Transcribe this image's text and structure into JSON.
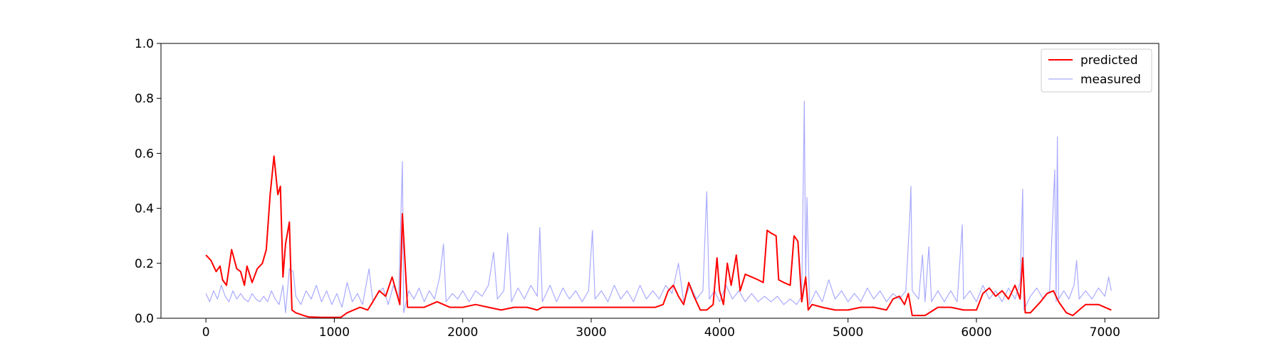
{
  "chart_data": {
    "type": "line",
    "title": "",
    "xlabel": "",
    "ylabel": "",
    "xlim": [
      -350,
      7420
    ],
    "ylim": [
      0,
      1.0
    ],
    "grid": false,
    "legend_position": "top-right",
    "x_ticks": [
      0,
      1000,
      2000,
      3000,
      4000,
      5000,
      6000,
      7000
    ],
    "x_tick_labels": [
      "0",
      "1000",
      "2000",
      "3000",
      "4000",
      "5000",
      "6000",
      "7000"
    ],
    "y_ticks": [
      0.0,
      0.2,
      0.4,
      0.6,
      0.8,
      1.0
    ],
    "y_tick_labels": [
      "0.0",
      "0.2",
      "0.4",
      "0.6",
      "0.8",
      "1.0"
    ],
    "series": [
      {
        "name": "predicted",
        "color": "#ff0000",
        "points": [
          [
            0,
            0.23
          ],
          [
            40,
            0.21
          ],
          [
            80,
            0.17
          ],
          [
            110,
            0.19
          ],
          [
            130,
            0.14
          ],
          [
            160,
            0.12
          ],
          [
            200,
            0.25
          ],
          [
            240,
            0.18
          ],
          [
            270,
            0.17
          ],
          [
            300,
            0.12
          ],
          [
            320,
            0.19
          ],
          [
            360,
            0.13
          ],
          [
            400,
            0.18
          ],
          [
            440,
            0.2
          ],
          [
            470,
            0.25
          ],
          [
            500,
            0.45
          ],
          [
            530,
            0.59
          ],
          [
            560,
            0.45
          ],
          [
            580,
            0.48
          ],
          [
            600,
            0.15
          ],
          [
            620,
            0.27
          ],
          [
            650,
            0.35
          ],
          [
            670,
            0.03
          ],
          [
            700,
            0.02
          ],
          [
            760,
            0.01
          ],
          [
            800,
            0.005
          ],
          [
            900,
            0.003
          ],
          [
            1050,
            0.003
          ],
          [
            1100,
            0.02
          ],
          [
            1150,
            0.03
          ],
          [
            1200,
            0.04
          ],
          [
            1260,
            0.03
          ],
          [
            1300,
            0.06
          ],
          [
            1350,
            0.1
          ],
          [
            1400,
            0.08
          ],
          [
            1450,
            0.15
          ],
          [
            1480,
            0.1
          ],
          [
            1510,
            0.05
          ],
          [
            1530,
            0.38
          ],
          [
            1545,
            0.25
          ],
          [
            1570,
            0.04
          ],
          [
            1620,
            0.04
          ],
          [
            1700,
            0.04
          ],
          [
            1800,
            0.06
          ],
          [
            1900,
            0.04
          ],
          [
            2000,
            0.04
          ],
          [
            2100,
            0.05
          ],
          [
            2200,
            0.04
          ],
          [
            2300,
            0.03
          ],
          [
            2400,
            0.04
          ],
          [
            2500,
            0.04
          ],
          [
            2580,
            0.03
          ],
          [
            2620,
            0.04
          ],
          [
            2700,
            0.04
          ],
          [
            2800,
            0.04
          ],
          [
            2900,
            0.04
          ],
          [
            3000,
            0.04
          ],
          [
            3100,
            0.04
          ],
          [
            3200,
            0.04
          ],
          [
            3300,
            0.04
          ],
          [
            3400,
            0.04
          ],
          [
            3500,
            0.04
          ],
          [
            3560,
            0.05
          ],
          [
            3600,
            0.1
          ],
          [
            3640,
            0.12
          ],
          [
            3680,
            0.08
          ],
          [
            3720,
            0.05
          ],
          [
            3760,
            0.13
          ],
          [
            3800,
            0.08
          ],
          [
            3850,
            0.03
          ],
          [
            3900,
            0.03
          ],
          [
            3950,
            0.05
          ],
          [
            3980,
            0.22
          ],
          [
            4000,
            0.1
          ],
          [
            4030,
            0.05
          ],
          [
            4060,
            0.2
          ],
          [
            4090,
            0.12
          ],
          [
            4130,
            0.23
          ],
          [
            4160,
            0.1
          ],
          [
            4200,
            0.16
          ],
          [
            4250,
            0.15
          ],
          [
            4300,
            0.14
          ],
          [
            4340,
            0.13
          ],
          [
            4370,
            0.32
          ],
          [
            4400,
            0.31
          ],
          [
            4440,
            0.3
          ],
          [
            4460,
            0.14
          ],
          [
            4500,
            0.13
          ],
          [
            4550,
            0.12
          ],
          [
            4580,
            0.3
          ],
          [
            4610,
            0.28
          ],
          [
            4640,
            0.06
          ],
          [
            4670,
            0.15
          ],
          [
            4690,
            0.03
          ],
          [
            4720,
            0.05
          ],
          [
            4800,
            0.04
          ],
          [
            4900,
            0.03
          ],
          [
            5000,
            0.03
          ],
          [
            5100,
            0.04
          ],
          [
            5200,
            0.04
          ],
          [
            5300,
            0.03
          ],
          [
            5350,
            0.07
          ],
          [
            5400,
            0.08
          ],
          [
            5440,
            0.05
          ],
          [
            5470,
            0.09
          ],
          [
            5500,
            0.01
          ],
          [
            5600,
            0.01
          ],
          [
            5700,
            0.04
          ],
          [
            5800,
            0.04
          ],
          [
            5900,
            0.03
          ],
          [
            6000,
            0.03
          ],
          [
            6050,
            0.09
          ],
          [
            6100,
            0.11
          ],
          [
            6150,
            0.08
          ],
          [
            6200,
            0.1
          ],
          [
            6250,
            0.07
          ],
          [
            6300,
            0.12
          ],
          [
            6340,
            0.07
          ],
          [
            6360,
            0.22
          ],
          [
            6380,
            0.02
          ],
          [
            6420,
            0.02
          ],
          [
            6500,
            0.06
          ],
          [
            6550,
            0.09
          ],
          [
            6600,
            0.1
          ],
          [
            6640,
            0.06
          ],
          [
            6700,
            0.02
          ],
          [
            6750,
            0.01
          ],
          [
            6800,
            0.03
          ],
          [
            6850,
            0.05
          ],
          [
            6950,
            0.05
          ],
          [
            7000,
            0.04
          ],
          [
            7050,
            0.03
          ]
        ]
      },
      {
        "name": "measured",
        "color": "#aaaaff",
        "points": [
          [
            0,
            0.09
          ],
          [
            30,
            0.06
          ],
          [
            60,
            0.1
          ],
          [
            90,
            0.07
          ],
          [
            120,
            0.12
          ],
          [
            150,
            0.08
          ],
          [
            180,
            0.06
          ],
          [
            210,
            0.1
          ],
          [
            240,
            0.07
          ],
          [
            270,
            0.09
          ],
          [
            300,
            0.07
          ],
          [
            330,
            0.06
          ],
          [
            360,
            0.09
          ],
          [
            390,
            0.07
          ],
          [
            420,
            0.06
          ],
          [
            450,
            0.08
          ],
          [
            480,
            0.06
          ],
          [
            510,
            0.1
          ],
          [
            540,
            0.07
          ],
          [
            570,
            0.05
          ],
          [
            600,
            0.12
          ],
          [
            620,
            0.02
          ],
          [
            650,
            0.18
          ],
          [
            680,
            0.17
          ],
          [
            700,
            0.08
          ],
          [
            740,
            0.05
          ],
          [
            780,
            0.1
          ],
          [
            820,
            0.07
          ],
          [
            860,
            0.12
          ],
          [
            900,
            0.06
          ],
          [
            940,
            0.1
          ],
          [
            980,
            0.05
          ],
          [
            1020,
            0.09
          ],
          [
            1060,
            0.04
          ],
          [
            1100,
            0.13
          ],
          [
            1140,
            0.06
          ],
          [
            1180,
            0.09
          ],
          [
            1220,
            0.05
          ],
          [
            1270,
            0.18
          ],
          [
            1300,
            0.06
          ],
          [
            1340,
            0.09
          ],
          [
            1380,
            0.11
          ],
          [
            1420,
            0.05
          ],
          [
            1460,
            0.12
          ],
          [
            1500,
            0.07
          ],
          [
            1530,
            0.57
          ],
          [
            1540,
            0.02
          ],
          [
            1580,
            0.1
          ],
          [
            1620,
            0.07
          ],
          [
            1660,
            0.11
          ],
          [
            1700,
            0.06
          ],
          [
            1740,
            0.1
          ],
          [
            1780,
            0.07
          ],
          [
            1820,
            0.15
          ],
          [
            1850,
            0.27
          ],
          [
            1870,
            0.06
          ],
          [
            1920,
            0.09
          ],
          [
            1960,
            0.07
          ],
          [
            2000,
            0.1
          ],
          [
            2050,
            0.06
          ],
          [
            2100,
            0.1
          ],
          [
            2150,
            0.08
          ],
          [
            2200,
            0.12
          ],
          [
            2240,
            0.24
          ],
          [
            2270,
            0.07
          ],
          [
            2320,
            0.1
          ],
          [
            2350,
            0.31
          ],
          [
            2380,
            0.06
          ],
          [
            2430,
            0.11
          ],
          [
            2480,
            0.07
          ],
          [
            2530,
            0.12
          ],
          [
            2580,
            0.08
          ],
          [
            2600,
            0.33
          ],
          [
            2620,
            0.06
          ],
          [
            2680,
            0.12
          ],
          [
            2730,
            0.06
          ],
          [
            2780,
            0.11
          ],
          [
            2830,
            0.07
          ],
          [
            2880,
            0.1
          ],
          [
            2930,
            0.06
          ],
          [
            2980,
            0.1
          ],
          [
            3010,
            0.32
          ],
          [
            3030,
            0.07
          ],
          [
            3080,
            0.1
          ],
          [
            3130,
            0.06
          ],
          [
            3180,
            0.12
          ],
          [
            3230,
            0.07
          ],
          [
            3280,
            0.1
          ],
          [
            3330,
            0.06
          ],
          [
            3380,
            0.12
          ],
          [
            3430,
            0.07
          ],
          [
            3480,
            0.1
          ],
          [
            3530,
            0.07
          ],
          [
            3580,
            0.12
          ],
          [
            3630,
            0.09
          ],
          [
            3680,
            0.2
          ],
          [
            3720,
            0.06
          ],
          [
            3770,
            0.12
          ],
          [
            3820,
            0.07
          ],
          [
            3870,
            0.1
          ],
          [
            3900,
            0.46
          ],
          [
            3920,
            0.07
          ],
          [
            3960,
            0.1
          ],
          [
            4000,
            0.06
          ],
          [
            4050,
            0.12
          ],
          [
            4100,
            0.07
          ],
          [
            4150,
            0.1
          ],
          [
            4200,
            0.06
          ],
          [
            4250,
            0.09
          ],
          [
            4300,
            0.06
          ],
          [
            4350,
            0.08
          ],
          [
            4400,
            0.06
          ],
          [
            4450,
            0.08
          ],
          [
            4500,
            0.05
          ],
          [
            4550,
            0.07
          ],
          [
            4600,
            0.05
          ],
          [
            4640,
            0.08
          ],
          [
            4660,
            0.79
          ],
          [
            4670,
            0.12
          ],
          [
            4680,
            0.44
          ],
          [
            4700,
            0.05
          ],
          [
            4750,
            0.1
          ],
          [
            4800,
            0.06
          ],
          [
            4850,
            0.14
          ],
          [
            4900,
            0.07
          ],
          [
            4950,
            0.1
          ],
          [
            5000,
            0.06
          ],
          [
            5050,
            0.09
          ],
          [
            5100,
            0.06
          ],
          [
            5150,
            0.11
          ],
          [
            5200,
            0.07
          ],
          [
            5250,
            0.1
          ],
          [
            5300,
            0.06
          ],
          [
            5350,
            0.09
          ],
          [
            5400,
            0.07
          ],
          [
            5450,
            0.1
          ],
          [
            5480,
            0.36
          ],
          [
            5490,
            0.48
          ],
          [
            5500,
            0.1
          ],
          [
            5550,
            0.07
          ],
          [
            5580,
            0.23
          ],
          [
            5600,
            0.06
          ],
          [
            5630,
            0.26
          ],
          [
            5650,
            0.06
          ],
          [
            5700,
            0.1
          ],
          [
            5750,
            0.06
          ],
          [
            5800,
            0.1
          ],
          [
            5850,
            0.06
          ],
          [
            5890,
            0.34
          ],
          [
            5900,
            0.07
          ],
          [
            5950,
            0.1
          ],
          [
            6000,
            0.06
          ],
          [
            6050,
            0.12
          ],
          [
            6100,
            0.07
          ],
          [
            6150,
            0.1
          ],
          [
            6200,
            0.06
          ],
          [
            6250,
            0.11
          ],
          [
            6300,
            0.07
          ],
          [
            6340,
            0.13
          ],
          [
            6360,
            0.47
          ],
          [
            6370,
            0.03
          ],
          [
            6420,
            0.08
          ],
          [
            6470,
            0.11
          ],
          [
            6520,
            0.07
          ],
          [
            6570,
            0.1
          ],
          [
            6610,
            0.54
          ],
          [
            6620,
            0.06
          ],
          [
            6630,
            0.66
          ],
          [
            6640,
            0.07
          ],
          [
            6680,
            0.1
          ],
          [
            6720,
            0.07
          ],
          [
            6760,
            0.12
          ],
          [
            6780,
            0.21
          ],
          [
            6800,
            0.07
          ],
          [
            6850,
            0.1
          ],
          [
            6900,
            0.07
          ],
          [
            6950,
            0.11
          ],
          [
            7000,
            0.08
          ],
          [
            7030,
            0.15
          ],
          [
            7050,
            0.1
          ]
        ]
      }
    ]
  }
}
